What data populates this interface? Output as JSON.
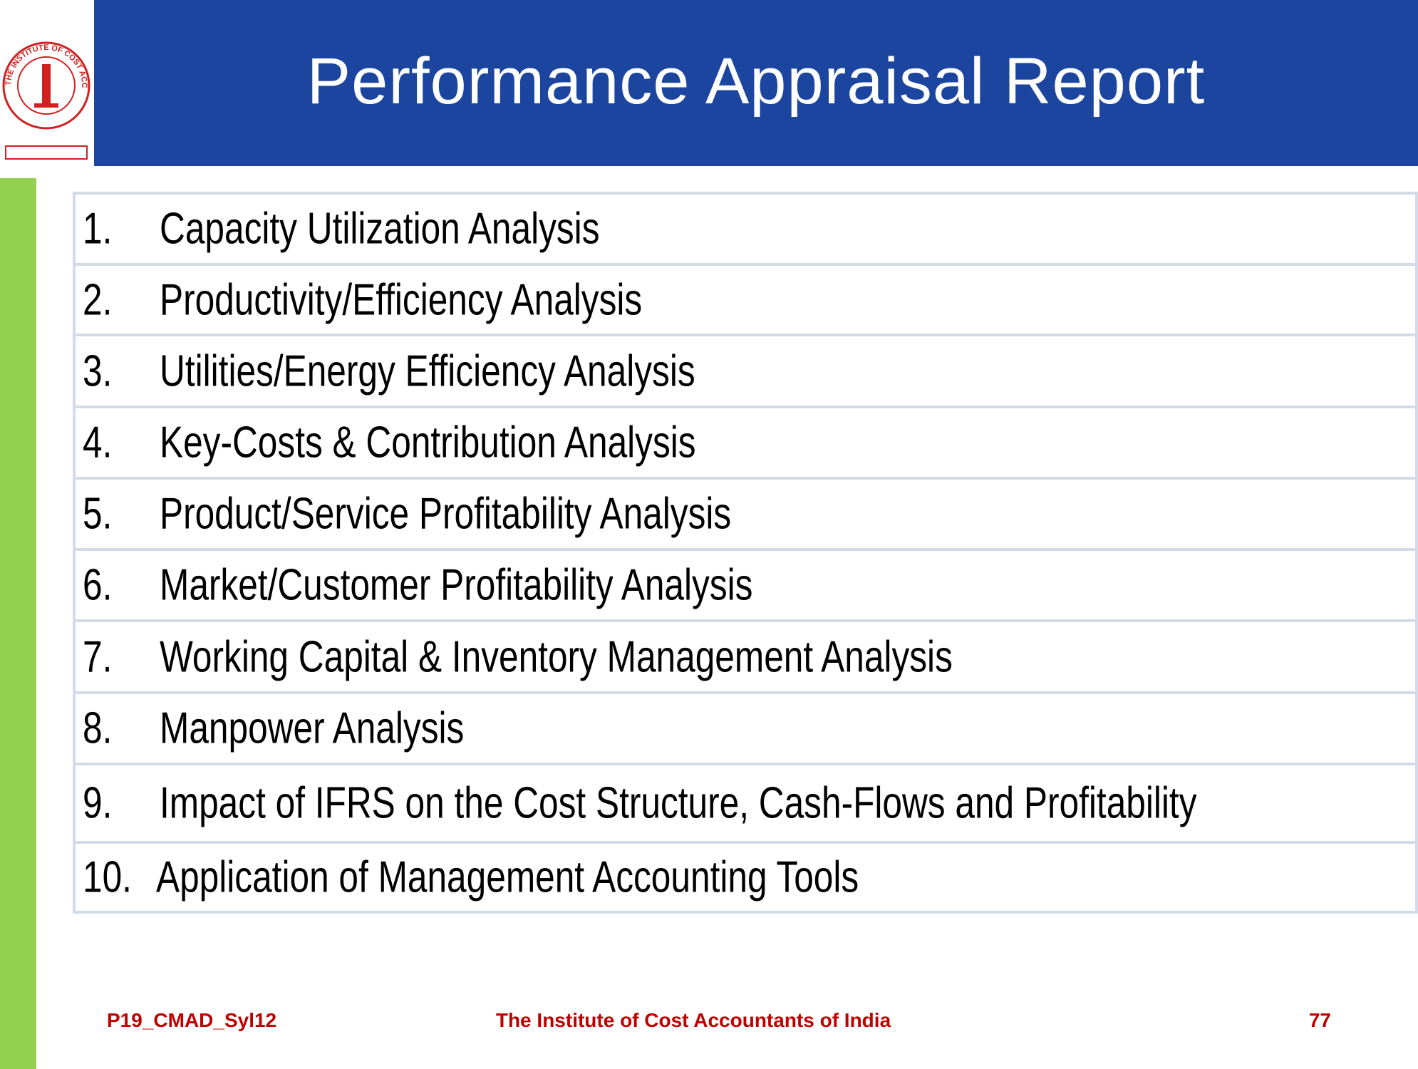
{
  "logo": {
    "text": "THE INSTITUTE OF COST ACCOUNTANTS OF INDIA"
  },
  "header": {
    "title": "Performance Appraisal Report"
  },
  "list": {
    "items": [
      {
        "number": "1.",
        "text": "Capacity Utilization Analysis"
      },
      {
        "number": "2.",
        "text": "Productivity/Efficiency Analysis"
      },
      {
        "number": "3.",
        "text": "Utilities/Energy Efficiency Analysis"
      },
      {
        "number": "4.",
        "text": "Key-Costs & Contribution Analysis"
      },
      {
        "number": "5.",
        "text": "Product/Service Profitability Analysis"
      },
      {
        "number": "6.",
        "text": "Market/Customer Profitability Analysis"
      },
      {
        "number": "7.",
        "text": "Working Capital & Inventory Management Analysis"
      },
      {
        "number": "8.",
        "text": "Manpower Analysis"
      },
      {
        "number": "9.",
        "text": "Impact of IFRS on the Cost Structure, Cash-Flows and Profitability"
      },
      {
        "number": "10.",
        "text": "Application of Management Accounting Tools"
      }
    ]
  },
  "footer": {
    "left": "P19_CMAD_Syl12",
    "center": "The Institute of Cost Accountants of India",
    "right": "77"
  }
}
